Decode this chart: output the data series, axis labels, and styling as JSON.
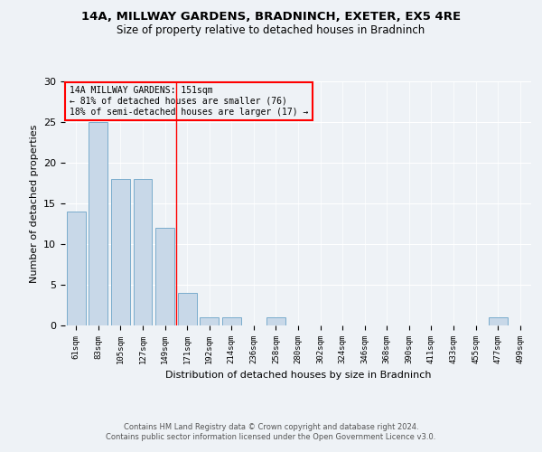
{
  "title1": "14A, MILLWAY GARDENS, BRADNINCH, EXETER, EX5 4RE",
  "title2": "Size of property relative to detached houses in Bradninch",
  "xlabel": "Distribution of detached houses by size in Bradninch",
  "ylabel": "Number of detached properties",
  "categories": [
    "61sqm",
    "83sqm",
    "105sqm",
    "127sqm",
    "149sqm",
    "171sqm",
    "192sqm",
    "214sqm",
    "236sqm",
    "258sqm",
    "280sqm",
    "302sqm",
    "324sqm",
    "346sqm",
    "368sqm",
    "390sqm",
    "411sqm",
    "433sqm",
    "455sqm",
    "477sqm",
    "499sqm"
  ],
  "values": [
    14,
    25,
    18,
    18,
    12,
    4,
    1,
    1,
    0,
    1,
    0,
    0,
    0,
    0,
    0,
    0,
    0,
    0,
    0,
    1,
    0
  ],
  "bar_color": "#c8d8e8",
  "bar_edge_color": "#7aaccc",
  "vline_x": 4.5,
  "vline_color": "red",
  "annotation_line1": "14A MILLWAY GARDENS: 151sqm",
  "annotation_line2": "← 81% of detached houses are smaller (76)",
  "annotation_line3": "18% of semi-detached houses are larger (17) →",
  "annotation_box_color": "red",
  "ylim": [
    0,
    30
  ],
  "yticks": [
    0,
    5,
    10,
    15,
    20,
    25,
    30
  ],
  "footer1": "Contains HM Land Registry data © Crown copyright and database right 2024.",
  "footer2": "Contains public sector information licensed under the Open Government Licence v3.0.",
  "bg_color": "#eef2f6"
}
